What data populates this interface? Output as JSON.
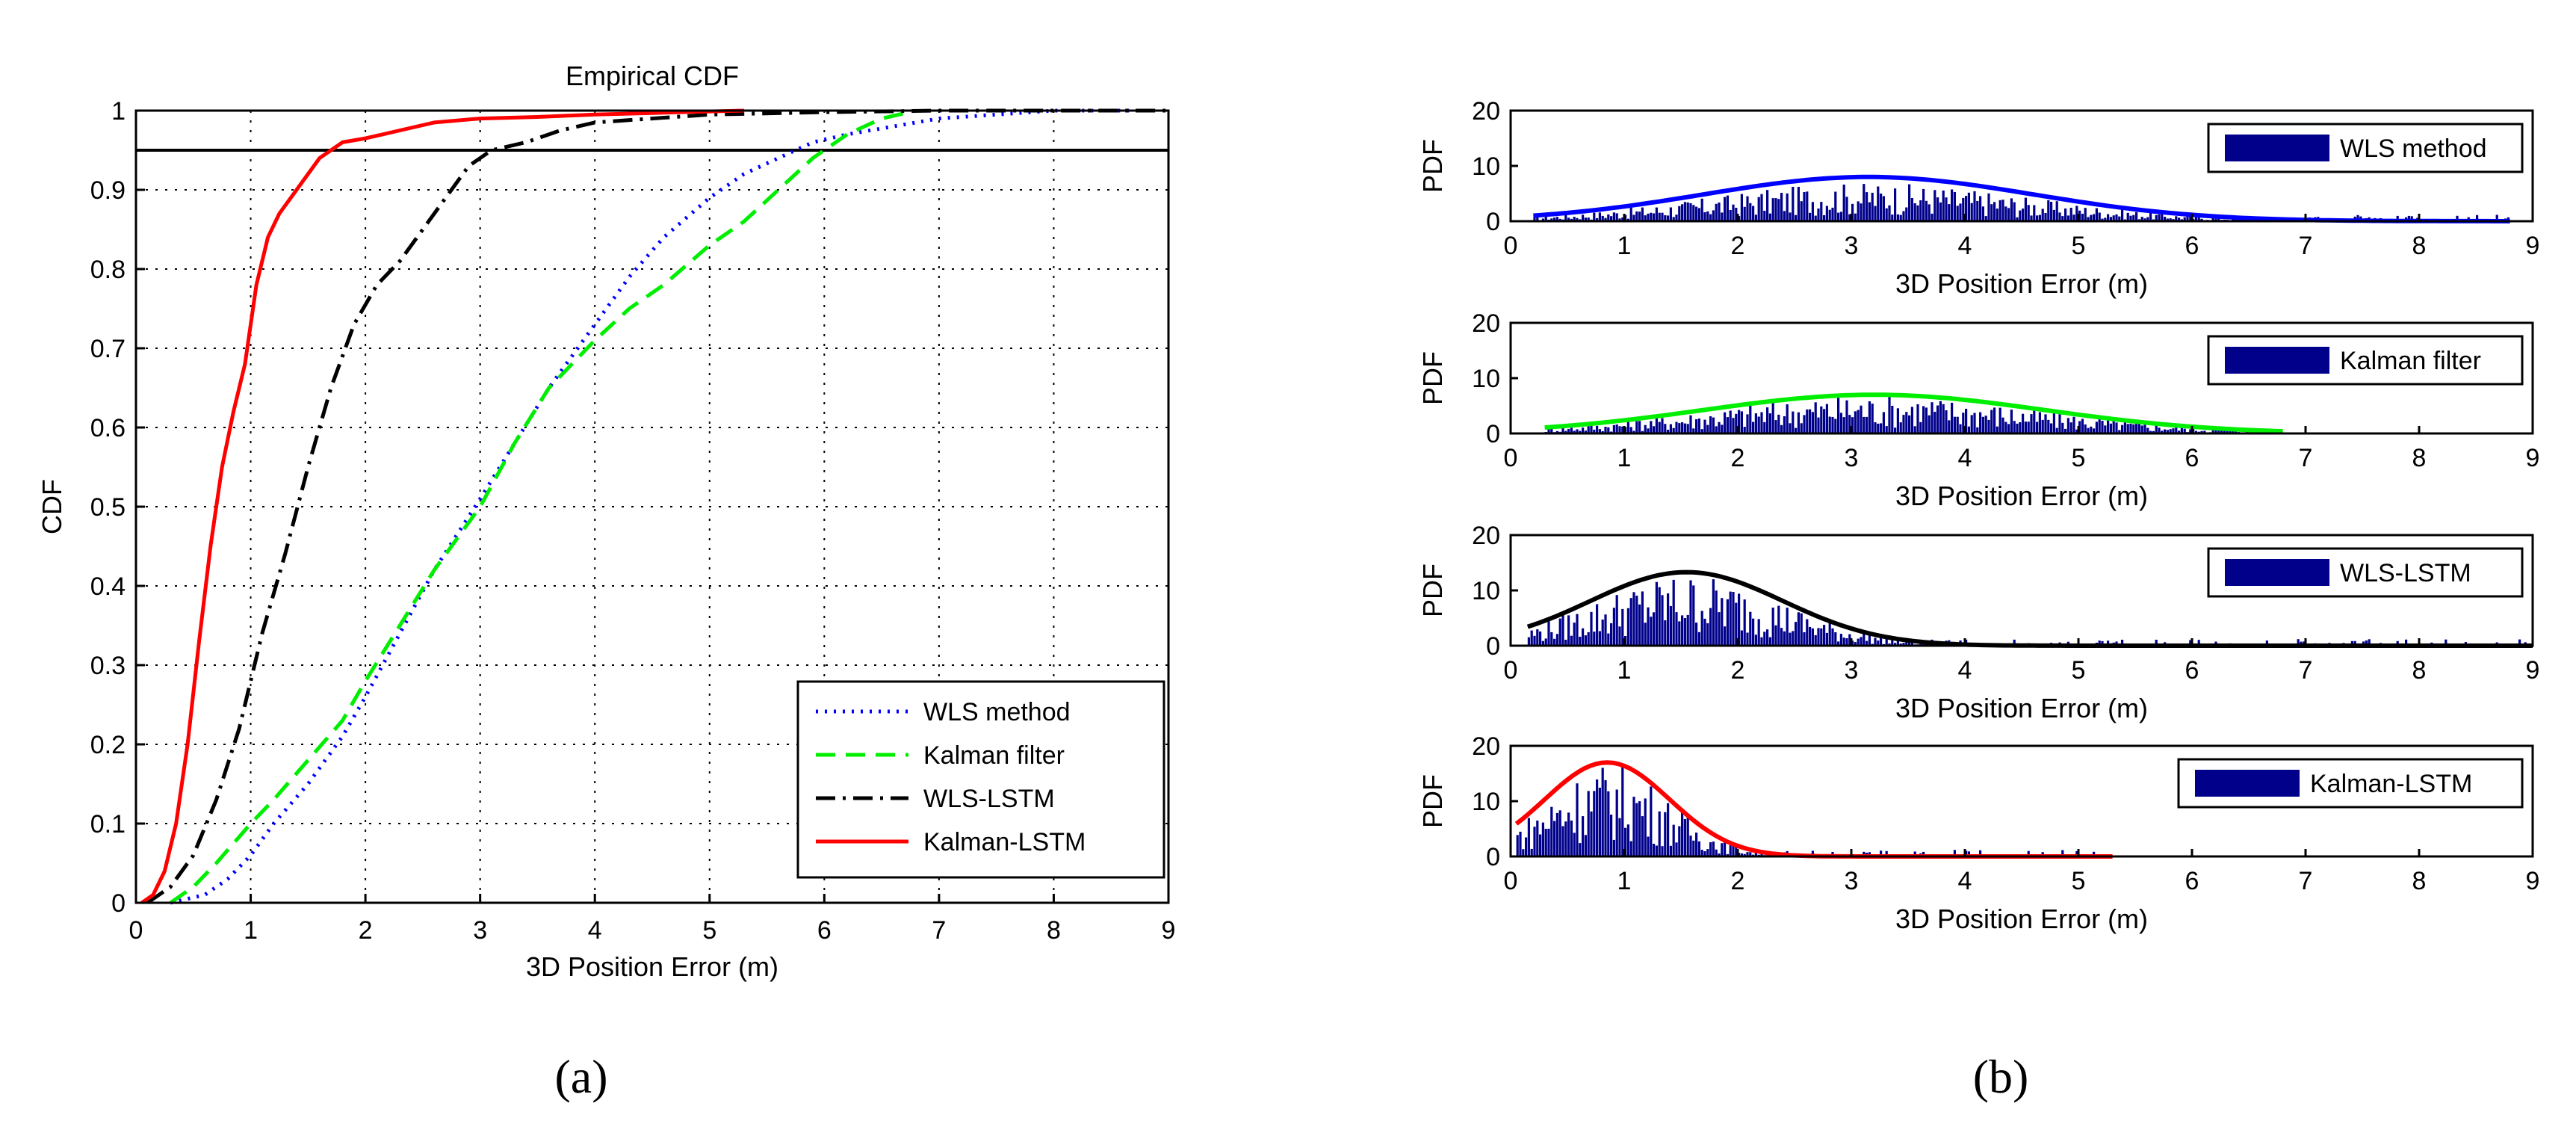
{
  "chart_data": [
    {
      "type": "line",
      "title": "Empirical CDF",
      "xlabel": "3D Position Error (m)",
      "ylabel": "CDF",
      "xlim": [
        0,
        9
      ],
      "ylim": [
        0,
        1
      ],
      "xticks": [
        "0",
        "1",
        "2",
        "3",
        "4",
        "5",
        "6",
        "7",
        "8",
        "9"
      ],
      "yticks": [
        "0",
        "0.1",
        "0.2",
        "0.3",
        "0.4",
        "0.5",
        "0.6",
        "0.7",
        "0.8",
        "0.9",
        "1"
      ],
      "grid": true,
      "legend_position": "bottom-right",
      "reference_line": {
        "y": 0.95,
        "color": "#000000"
      },
      "series": [
        {
          "name": "WLS method",
          "color": "#0000ff",
          "style": "dotted",
          "x": [
            0.3,
            0.6,
            0.8,
            1.0,
            1.2,
            1.5,
            1.8,
            2.0,
            2.3,
            2.6,
            3.0,
            3.3,
            3.6,
            4.0,
            4.3,
            4.6,
            5.0,
            5.3,
            5.6,
            5.9,
            6.2,
            6.6,
            7.0,
            7.5,
            8.0,
            8.8
          ],
          "y": [
            0,
            0.01,
            0.03,
            0.06,
            0.1,
            0.15,
            0.21,
            0.26,
            0.34,
            0.42,
            0.51,
            0.58,
            0.65,
            0.73,
            0.79,
            0.84,
            0.89,
            0.92,
            0.94,
            0.96,
            0.97,
            0.98,
            0.99,
            0.995,
            1,
            1
          ]
        },
        {
          "name": "Kalman filter",
          "color": "#00ee00",
          "style": "dashed",
          "x": [
            0.3,
            0.5,
            0.7,
            1.0,
            1.2,
            1.5,
            1.8,
            2.0,
            2.3,
            2.6,
            3.0,
            3.3,
            3.6,
            4.0,
            4.3,
            4.6,
            5.0,
            5.3,
            5.6,
            5.9,
            6.2,
            6.5,
            6.8
          ],
          "y": [
            0,
            0.02,
            0.05,
            0.1,
            0.13,
            0.18,
            0.23,
            0.28,
            0.35,
            0.42,
            0.5,
            0.58,
            0.65,
            0.71,
            0.75,
            0.78,
            0.83,
            0.86,
            0.9,
            0.94,
            0.97,
            0.99,
            1
          ]
        },
        {
          "name": "WLS-LSTM",
          "color": "#000000",
          "style": "dashdot",
          "x": [
            0.1,
            0.3,
            0.5,
            0.7,
            0.9,
            1.1,
            1.3,
            1.5,
            1.7,
            1.9,
            2.1,
            2.3,
            2.5,
            2.7,
            2.9,
            3.1,
            3.4,
            3.7,
            4.0,
            4.5,
            5.0,
            6.0,
            7.0,
            8.0,
            9.0
          ],
          "y": [
            0,
            0.02,
            0.06,
            0.13,
            0.22,
            0.34,
            0.44,
            0.55,
            0.65,
            0.73,
            0.78,
            0.81,
            0.85,
            0.89,
            0.93,
            0.95,
            0.96,
            0.975,
            0.985,
            0.99,
            0.995,
            0.998,
            1,
            1,
            1
          ]
        },
        {
          "name": "Kalman-LSTM",
          "color": "#ff0000",
          "style": "solid",
          "x": [
            0.05,
            0.15,
            0.25,
            0.35,
            0.45,
            0.55,
            0.65,
            0.75,
            0.85,
            0.95,
            1.05,
            1.15,
            1.25,
            1.4,
            1.6,
            1.8,
            2.0,
            2.3,
            2.6,
            3.0,
            3.5,
            4.0,
            4.5,
            5.0,
            5.3
          ],
          "y": [
            0,
            0.01,
            0.04,
            0.1,
            0.2,
            0.33,
            0.45,
            0.55,
            0.62,
            0.68,
            0.78,
            0.84,
            0.87,
            0.9,
            0.94,
            0.96,
            0.965,
            0.975,
            0.985,
            0.99,
            0.992,
            0.995,
            0.997,
            0.999,
            1
          ]
        }
      ],
      "caption": "(a)"
    },
    {
      "type": "bar",
      "xlabel": "3D Position Error (m)",
      "ylabel": "PDF",
      "xlim": [
        0,
        9
      ],
      "ylim": [
        0,
        20
      ],
      "xticks": [
        "0",
        "1",
        "2",
        "3",
        "4",
        "5",
        "6",
        "7",
        "8",
        "9"
      ],
      "yticks": [
        "0",
        "10",
        "20"
      ],
      "bar_color": "#00008b",
      "legend_position": "top-right",
      "panels": [
        {
          "name": "WLS method",
          "curve_color": "#0000ff",
          "fit_mean": 3.15,
          "fit_sd": 1.45,
          "fit_peak": 8,
          "x_range": [
            0.2,
            8.8
          ],
          "bar_peak": 7
        },
        {
          "name": "Kalman filter",
          "curve_color": "#00ee00",
          "fit_mean": 3.2,
          "fit_sd": 1.5,
          "fit_peak": 7,
          "x_range": [
            0.3,
            6.8
          ],
          "bar_peak": 7
        },
        {
          "name": "WLS-LSTM",
          "curve_color": "#000000",
          "fit_mean": 1.55,
          "fit_sd": 0.85,
          "fit_peak": 13.3,
          "x_range": [
            0.15,
            9.0
          ],
          "bar_peak": 13
        },
        {
          "name": "Kalman-LSTM",
          "curve_color": "#ff0000",
          "fit_mean": 0.85,
          "fit_sd": 0.55,
          "fit_peak": 17,
          "x_range": [
            0.05,
            5.3
          ],
          "bar_peak": 17
        }
      ],
      "caption": "(b)"
    }
  ]
}
